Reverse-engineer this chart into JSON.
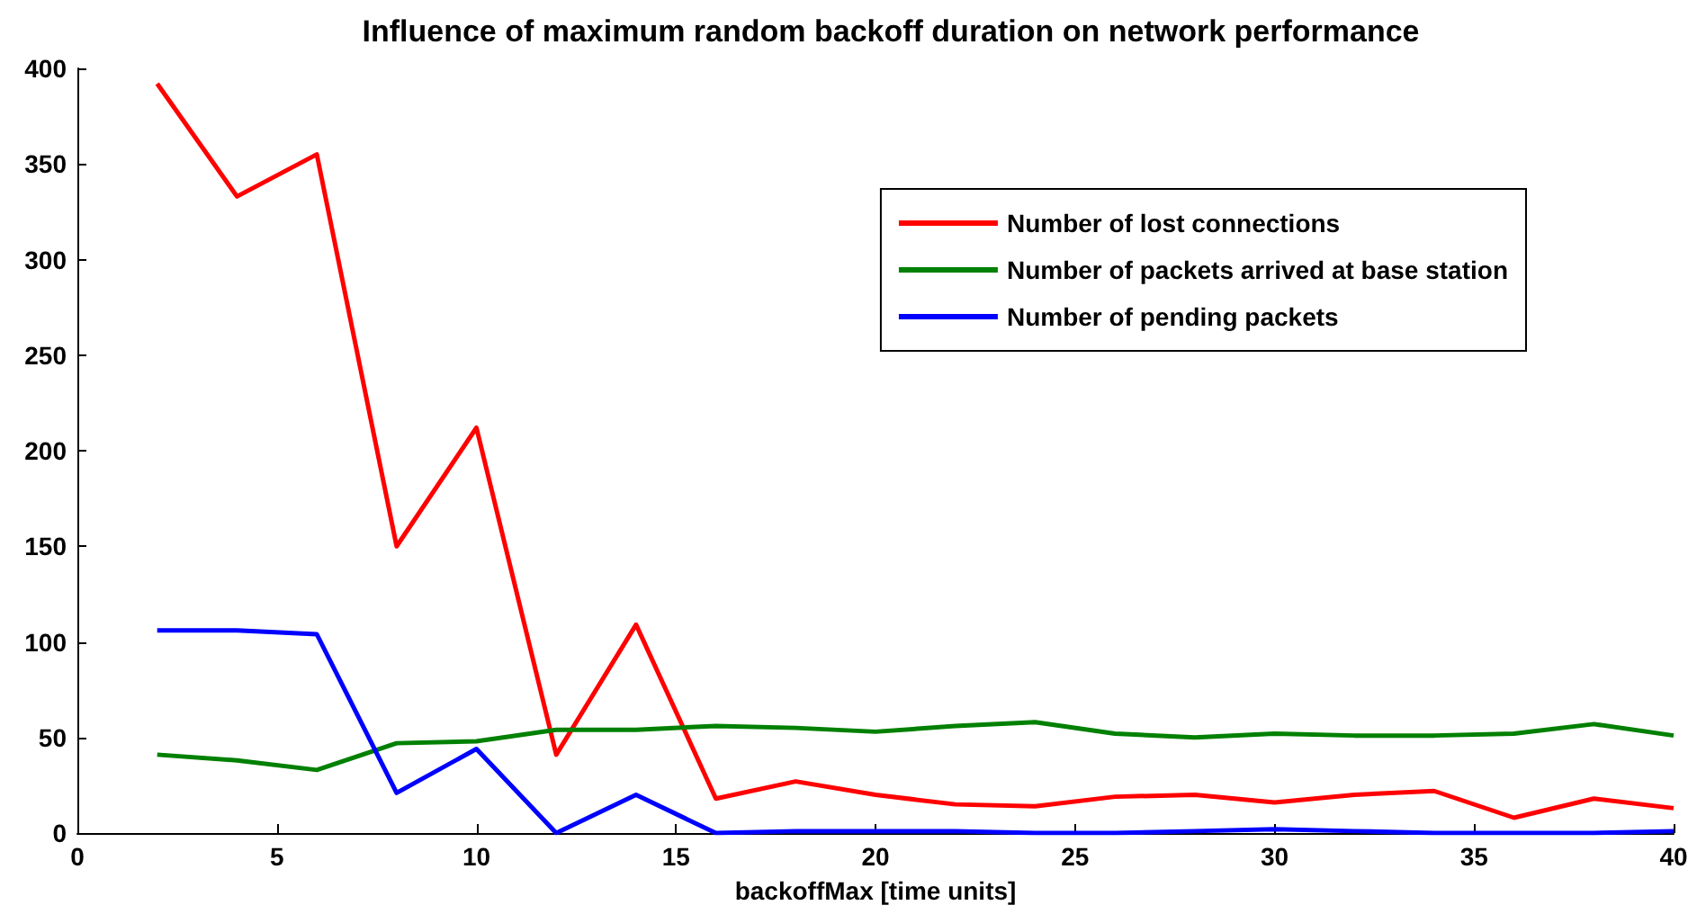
{
  "chart_data": {
    "type": "line",
    "title": "Influence of maximum random backoff duration on network performance",
    "xlabel": "backoffMax [time units]",
    "x": [
      2,
      4,
      6,
      8,
      10,
      12,
      14,
      16,
      18,
      20,
      22,
      24,
      26,
      28,
      30,
      32,
      34,
      36,
      38,
      40
    ],
    "series": [
      {
        "name": "Number of lost connections",
        "color": "#ff0000",
        "values": [
          392,
          333,
          355,
          150,
          212,
          41,
          109,
          18,
          27,
          20,
          15,
          14,
          19,
          20,
          16,
          20,
          22,
          8,
          18,
          13
        ]
      },
      {
        "name": "Number of packets arrived at base station",
        "color": "#008000",
        "values": [
          41,
          38,
          33,
          47,
          48,
          54,
          54,
          56,
          55,
          53,
          56,
          58,
          52,
          50,
          52,
          51,
          51,
          52,
          57,
          51
        ]
      },
      {
        "name": "Number of pending packets",
        "color": "#0000ff",
        "values": [
          106,
          106,
          104,
          21,
          44,
          0,
          20,
          0,
          1,
          1,
          1,
          0,
          0,
          1,
          2,
          1,
          0,
          0,
          0,
          1
        ]
      }
    ],
    "xlim": [
      0,
      40
    ],
    "xticks": [
      0,
      5,
      10,
      15,
      20,
      25,
      30,
      35,
      40
    ],
    "ylim": [
      0,
      400
    ],
    "yticks": [
      0,
      50,
      100,
      150,
      200,
      250,
      300,
      350,
      400
    ],
    "grid": false,
    "legend": "top right",
    "marker": "none",
    "line_style": "solid"
  }
}
